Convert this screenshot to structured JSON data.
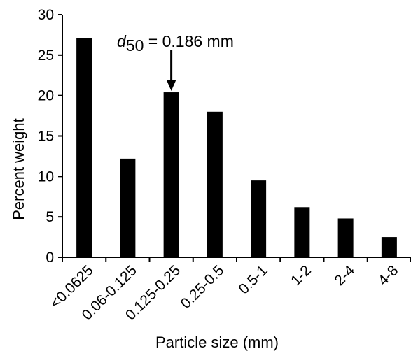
{
  "chart_data": {
    "type": "bar",
    "categories": [
      "<0.0625",
      "0.06-0.125",
      "0.125-0.25",
      "0.25-0.5",
      "0.5-1",
      "1-2",
      "2-4",
      "4-8"
    ],
    "values": [
      27.1,
      12.2,
      20.4,
      18.0,
      9.5,
      6.2,
      4.8,
      2.5
    ],
    "xlabel": "Particle size (mm)",
    "ylabel": "Percent weight",
    "ylim": [
      0,
      30
    ],
    "yticks": [
      0,
      5,
      10,
      15,
      20,
      25,
      30
    ],
    "grid": false,
    "annotation": {
      "symbol": "d",
      "subscript": "50",
      "text": " = 0.186 mm",
      "points_to_category": "0.125-0.25"
    }
  }
}
